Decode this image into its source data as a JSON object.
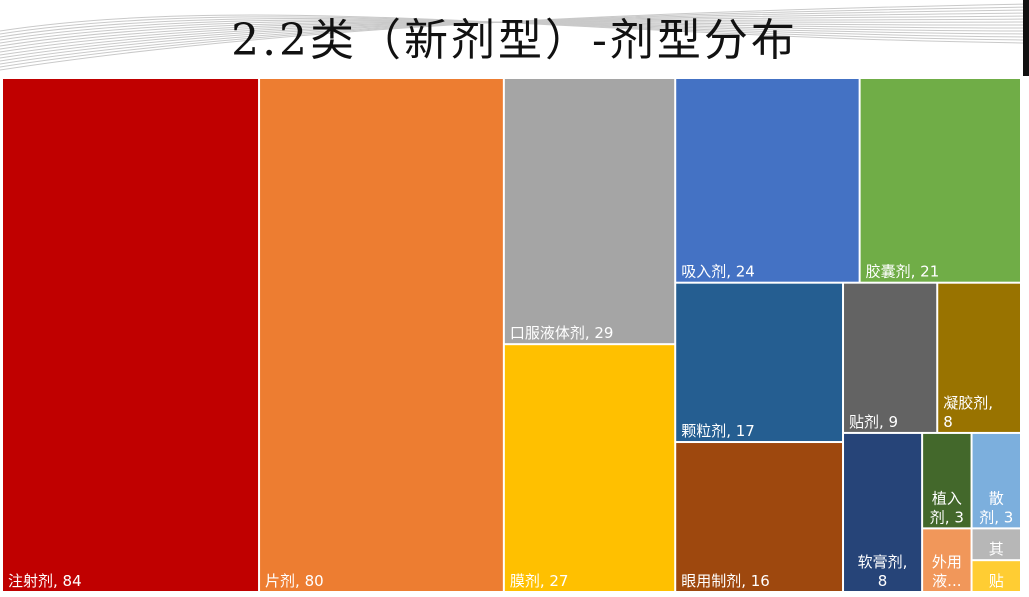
{
  "title": "2.2类（新剂型）-剂型分布",
  "chart_data": {
    "type": "treemap",
    "items": [
      {
        "name": "注射剂",
        "value": 84,
        "color": "#C00000",
        "label": "注射剂, 84"
      },
      {
        "name": "片剂",
        "value": 80,
        "color": "#ED7D31",
        "label": "片剂, 80"
      },
      {
        "name": "口服液体剂",
        "value": 29,
        "color": "#A5A5A5",
        "label": "口服液体剂, 29"
      },
      {
        "name": "膜剂",
        "value": 27,
        "color": "#FFC000",
        "label": "膜剂, 27"
      },
      {
        "name": "吸入剂",
        "value": 24,
        "color": "#4472C4",
        "label": "吸入剂, 24"
      },
      {
        "name": "胶囊剂",
        "value": 21,
        "color": "#70AD47",
        "label": "胶囊剂, 21"
      },
      {
        "name": "颗粒剂",
        "value": 17,
        "color": "#255E91",
        "label": "颗粒剂, 17"
      },
      {
        "name": "眼用制剂",
        "value": 16,
        "color": "#9E480E",
        "label": "眼用制剂, 16"
      },
      {
        "name": "贴剂",
        "value": 9,
        "color": "#636363",
        "label": "贴剂, 9"
      },
      {
        "name": "凝胶剂",
        "value": 8,
        "color": "#997300",
        "label": [
          "凝胶剂,",
          "8"
        ]
      },
      {
        "name": "软膏剂",
        "value": 8,
        "color": "#264478",
        "label": [
          "软膏剂,",
          "8"
        ]
      },
      {
        "name": "植入剂",
        "value": 3,
        "color": "#43682B",
        "label": [
          "植入",
          "剂, 3"
        ]
      },
      {
        "name": "散剂",
        "value": 3,
        "color": "#7CAFDD",
        "label": [
          "散",
          "剂, 3"
        ]
      },
      {
        "name": "外用液体剂",
        "value": 2,
        "color": "#F1975A",
        "label": [
          "外用",
          "液..."
        ]
      },
      {
        "name": "其他",
        "value": 1,
        "color": "#B7B7B7",
        "label": "其"
      },
      {
        "name": "贴",
        "value": 1,
        "color": "#FFCD33",
        "label": "贴"
      }
    ]
  }
}
